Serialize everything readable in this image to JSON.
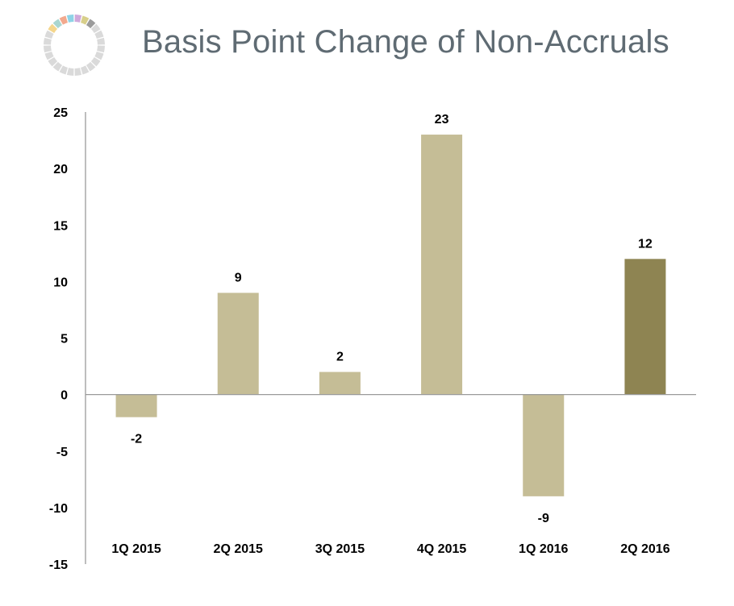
{
  "page": {
    "title": "Basis Point Change of Non-Accruals"
  },
  "logo": {
    "icon": "segmented-ring-icon",
    "segment_colors": [
      "#f2a98e",
      "#8ed3e6",
      "#cfa9da",
      "#d8cf8a",
      "#f4d68c",
      "#a9d6d0",
      "#9b9b9b",
      "#dadada"
    ]
  },
  "chart_data": {
    "type": "bar",
    "categories": [
      "1Q 2015",
      "2Q 2015",
      "3Q 2015",
      "4Q 2015",
      "1Q 2016",
      "2Q 2016"
    ],
    "values": [
      -2,
      9,
      2,
      23,
      -9,
      12
    ],
    "data_labels": [
      "-2",
      "9",
      "2",
      "23",
      "-9",
      "12"
    ],
    "title": "Basis Point Change of Non-Accruals",
    "xlabel": "",
    "ylabel": "",
    "ylim": [
      -15,
      25
    ],
    "yticks": [
      25,
      20,
      15,
      10,
      5,
      0,
      -5,
      -10,
      -15
    ],
    "grid": false,
    "legend": "none",
    "colors": {
      "default_bar": "#c5bd96",
      "highlight_bar": "#8e8452",
      "highlight_index": 5,
      "axis": "#9a9a9a"
    }
  }
}
